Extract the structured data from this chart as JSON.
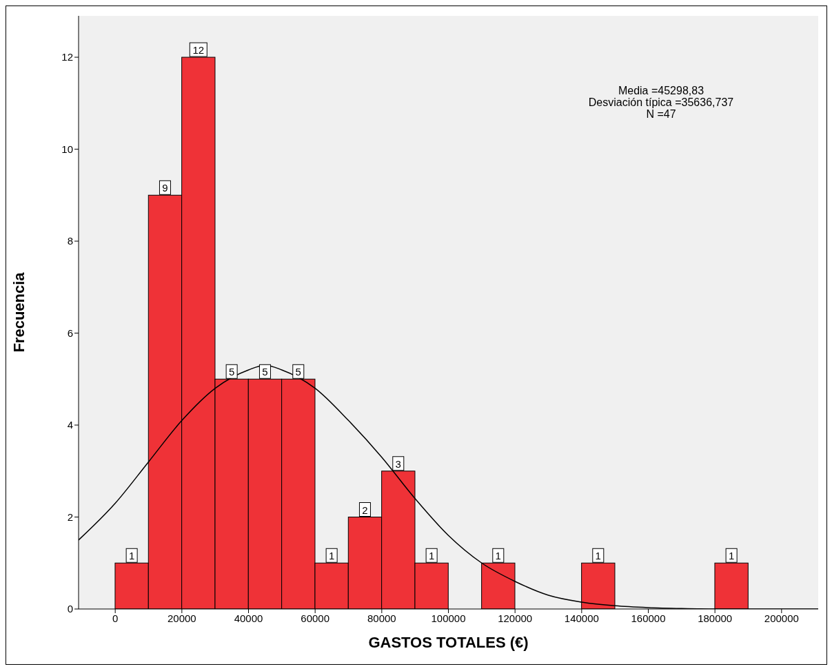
{
  "chart_data": {
    "type": "histogram",
    "xlabel": "GASTOS TOTALES (€)",
    "ylabel": "Frecuencia",
    "bins": [
      0,
      10000,
      20000,
      30000,
      40000,
      50000,
      60000,
      70000,
      80000,
      90000,
      100000,
      110000,
      120000,
      130000,
      140000,
      150000,
      160000,
      170000,
      180000,
      190000
    ],
    "values": [
      1,
      9,
      12,
      5,
      5,
      5,
      1,
      2,
      3,
      1,
      0,
      1,
      0,
      0,
      1,
      0,
      0,
      0,
      1
    ],
    "value_labels": [
      "1",
      "9",
      "12",
      "5",
      "5",
      "5",
      "1",
      "2",
      "3",
      "1",
      null,
      "1",
      null,
      null,
      "1",
      null,
      null,
      null,
      "1"
    ],
    "color": "#ef3237",
    "series": [
      {
        "type": "line",
        "color": "#000000",
        "x": [
          -11000,
          0,
          10000,
          20000,
          30000,
          40000,
          45000,
          50000,
          60000,
          70000,
          80000,
          90000,
          100000,
          110000,
          120000,
          130000,
          140000,
          150000,
          160000,
          170000,
          180000,
          190000,
          200000,
          211000
        ],
        "values": [
          1.5,
          2.3,
          3.2,
          4.1,
          4.8,
          5.2,
          5.3,
          5.2,
          4.8,
          4.1,
          3.3,
          2.4,
          1.6,
          1.0,
          0.6,
          0.3,
          0.15,
          0.07,
          0.03,
          0.01,
          0,
          0,
          0,
          0
        ]
      }
    ],
    "xlim": [
      -11000,
      211000
    ],
    "ylim": [
      0,
      12.9
    ],
    "xticks": [
      0,
      20000,
      40000,
      60000,
      80000,
      100000,
      120000,
      140000,
      160000,
      180000,
      200000
    ],
    "yticks": [
      0,
      2,
      4,
      6,
      8,
      10,
      12
    ],
    "grid": false,
    "legend": false,
    "marker": "none",
    "line_style": "solid",
    "annotations": [
      "Media =45298,83",
      "Desviación típica =35636,737",
      "N =47"
    ]
  }
}
